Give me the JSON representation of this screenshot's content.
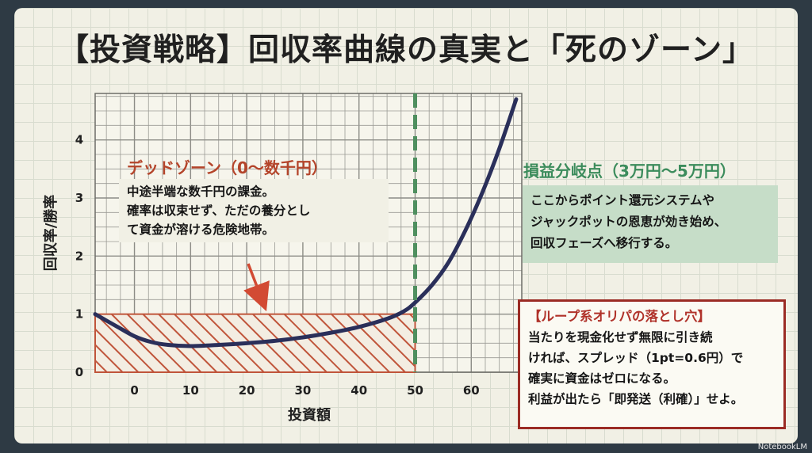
{
  "title": "【投資戦略】回収率曲線の真実と「死のゾーン」",
  "chart_data": {
    "type": "line",
    "xlabel": "投資額",
    "ylabel": "回収率/勝率",
    "xticks": [
      "0",
      "10",
      "20",
      "30",
      "40",
      "50",
      "60"
    ],
    "yticks": [
      "0",
      "1",
      "2",
      "3",
      "4"
    ],
    "xlim": [
      -7,
      69
    ],
    "ylim": [
      0,
      4.8
    ],
    "breakeven_x": 50,
    "dead_zone": {
      "x": [
        -7,
        50
      ],
      "y": [
        0,
        1
      ]
    },
    "series": [
      {
        "x": [
          -7,
          -3,
          0,
          3,
          6,
          10,
          15,
          20,
          25,
          30,
          35,
          40,
          45,
          48,
          50,
          53,
          56,
          59,
          62,
          65,
          68
        ],
        "y": [
          1.0,
          0.78,
          0.62,
          0.52,
          0.47,
          0.45,
          0.47,
          0.5,
          0.54,
          0.6,
          0.68,
          0.78,
          0.92,
          1.05,
          1.2,
          1.5,
          1.9,
          2.45,
          3.1,
          3.85,
          4.7
        ]
      }
    ]
  },
  "dead_zone_label": {
    "title": "デッドゾーン（0〜数千円）",
    "lines": [
      "中途半端な数千円の課金。",
      "確率は収束せず、ただの養分とし",
      "て資金が溶ける危険地帯。"
    ]
  },
  "breakeven_label": {
    "title": "損益分岐点（3万円〜5万円）",
    "lines": [
      "ここからポイント還元システムや",
      "ジャックポットの恩恵が効き始め、",
      "回収フェーズへ移行する。"
    ]
  },
  "loop_warning": {
    "title": "【ループ系オリパの落とし穴】",
    "lines": [
      "当たりを現金化せず無限に引き続",
      "ければ、スプレッド（1pt=0.6円）で",
      "確実に資金はゼロになる。",
      "利益が出たら「即発送（利確）」せよ。"
    ]
  },
  "badge": "NotebookLM",
  "colors": {
    "curve": "#2a2f5a",
    "dead_zone": "#c0553b",
    "breakeven_line": "#4f8f5f",
    "grid_major": "#8c8c86",
    "arrow": "#d24a33"
  }
}
